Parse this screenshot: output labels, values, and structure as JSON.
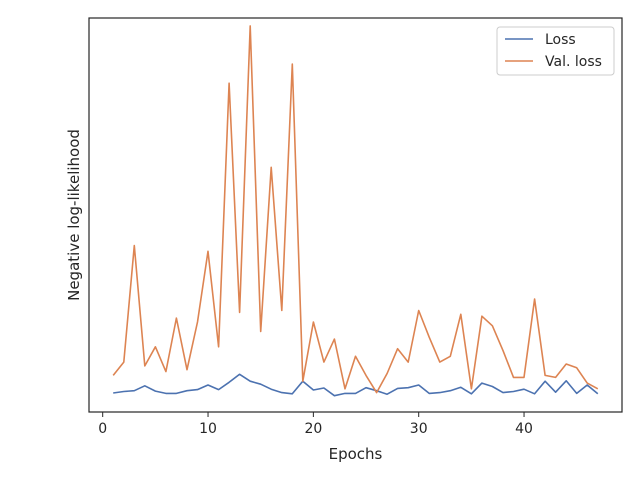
{
  "chart_data": {
    "type": "line",
    "xlabel": "Epochs",
    "ylabel": "Negative log-likelihood",
    "xlim": [
      -1.3,
      49.3
    ],
    "ylim": [
      0,
      1
    ],
    "xticks": [
      0,
      10,
      20,
      30,
      40
    ],
    "yticks_visible": false,
    "grid": false,
    "legend_placement": "top-right",
    "colors": {
      "loss": "#4c72b0",
      "val_loss": "#dd8452",
      "axes": "#262626"
    },
    "series": [
      {
        "name": "Loss",
        "x": [
          1,
          2,
          3,
          4,
          5,
          6,
          7,
          8,
          9,
          10,
          11,
          12,
          13,
          14,
          15,
          16,
          17,
          18,
          19,
          20,
          21,
          22,
          23,
          24,
          25,
          26,
          27,
          28,
          29,
          30,
          31,
          32,
          33,
          34,
          35,
          36,
          37,
          38,
          39,
          40,
          41,
          42,
          43,
          44,
          45,
          46,
          47
        ],
        "values": [
          0.034,
          0.038,
          0.04,
          0.053,
          0.039,
          0.033,
          0.033,
          0.04,
          0.043,
          0.055,
          0.043,
          0.062,
          0.083,
          0.065,
          0.057,
          0.044,
          0.035,
          0.032,
          0.065,
          0.042,
          0.047,
          0.027,
          0.033,
          0.033,
          0.048,
          0.04,
          0.031,
          0.046,
          0.048,
          0.055,
          0.033,
          0.035,
          0.04,
          0.049,
          0.032,
          0.06,
          0.051,
          0.035,
          0.038,
          0.044,
          0.032,
          0.065,
          0.036,
          0.066,
          0.033,
          0.055,
          0.032
        ]
      },
      {
        "name": "Val. loss",
        "x": [
          1,
          2,
          3,
          4,
          5,
          6,
          7,
          8,
          9,
          10,
          11,
          12,
          13,
          14,
          15,
          16,
          17,
          18,
          19,
          20,
          21,
          22,
          23,
          24,
          25,
          26,
          27,
          28,
          29,
          30,
          31,
          32,
          33,
          34,
          35,
          36,
          37,
          38,
          39,
          40,
          41,
          42,
          43,
          44,
          45,
          46,
          47
        ],
        "values": [
          0.08,
          0.115,
          0.42,
          0.105,
          0.155,
          0.09,
          0.23,
          0.095,
          0.22,
          0.405,
          0.155,
          0.845,
          0.245,
          0.995,
          0.195,
          0.625,
          0.25,
          0.895,
          0.065,
          0.22,
          0.115,
          0.175,
          0.045,
          0.13,
          0.08,
          0.035,
          0.085,
          0.15,
          0.115,
          0.25,
          0.18,
          0.115,
          0.13,
          0.24,
          0.045,
          0.235,
          0.21,
          0.145,
          0.075,
          0.075,
          0.28,
          0.08,
          0.075,
          0.11,
          0.1,
          0.06,
          0.045
        ]
      }
    ]
  }
}
